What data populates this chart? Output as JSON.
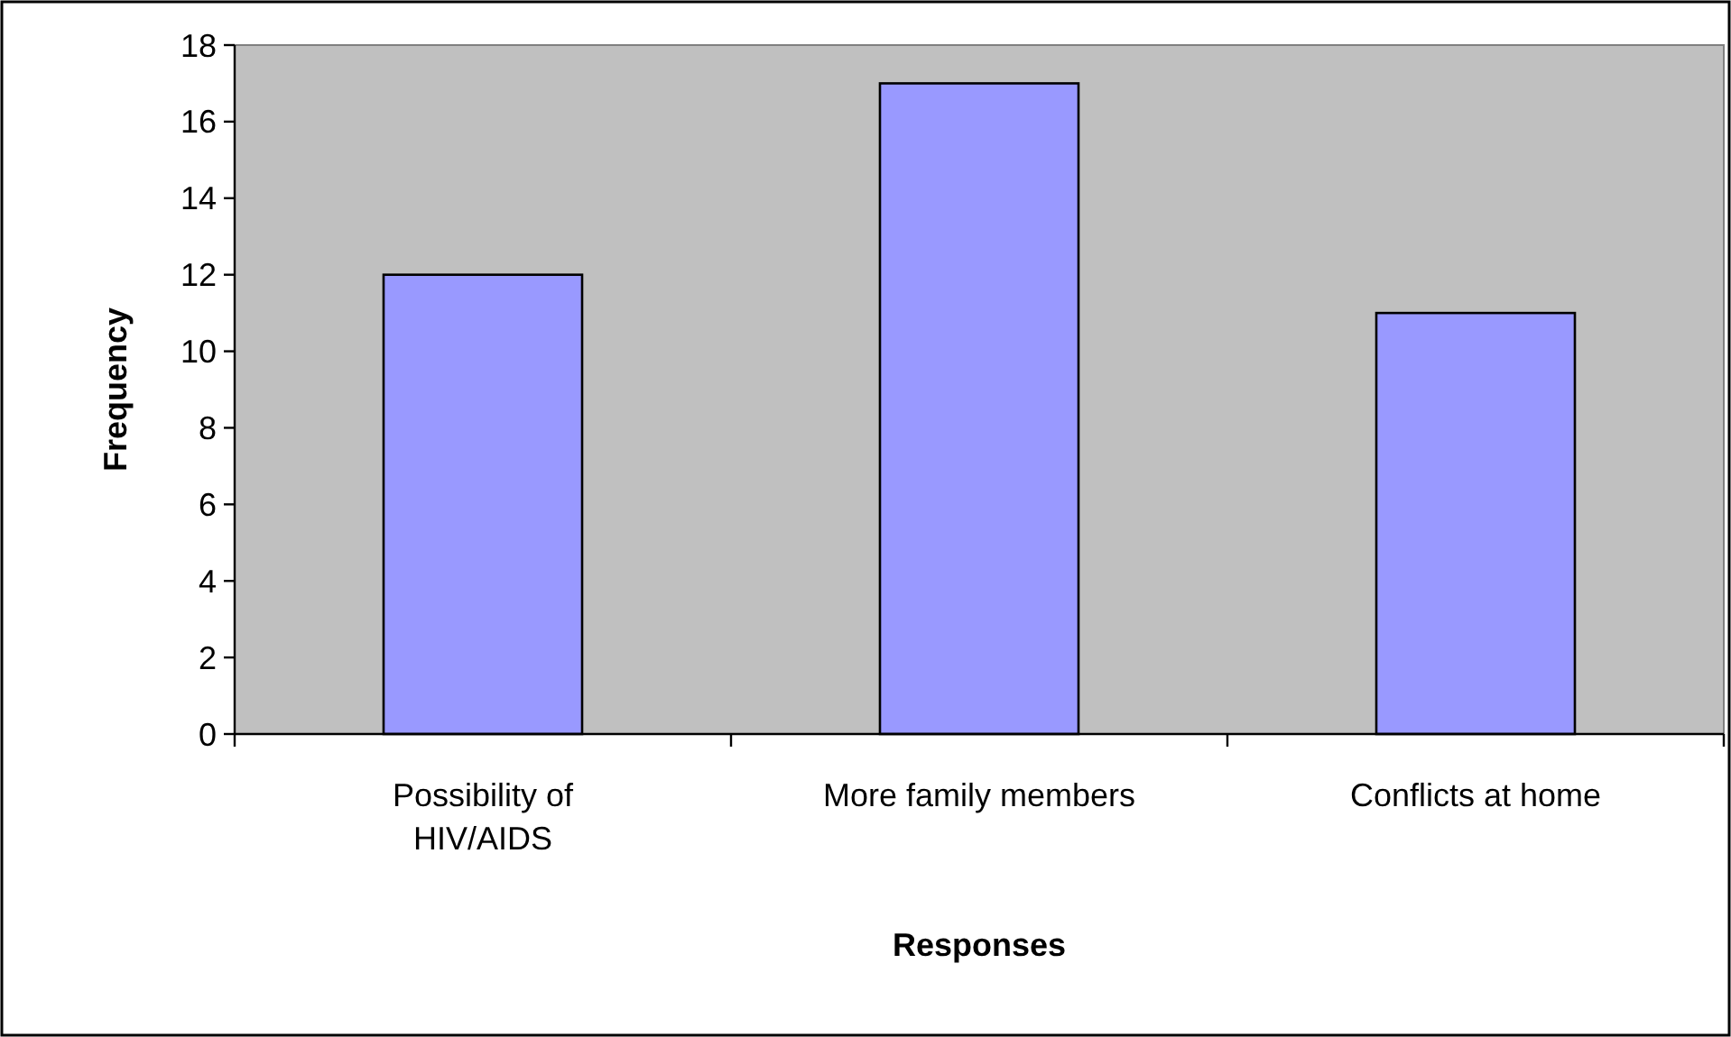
{
  "chart_data": {
    "type": "bar",
    "xlabel": "Responses",
    "ylabel": "Frequency",
    "categories": [
      "Possibility of HIV/AIDS",
      "More family members",
      "Conflicts at home"
    ],
    "values": [
      12,
      17,
      11
    ],
    "color": "#9999ff",
    "ylim": [
      0,
      18
    ],
    "yticks": [
      0,
      2,
      4,
      6,
      8,
      10,
      12,
      14,
      16,
      18
    ],
    "grid": false
  }
}
